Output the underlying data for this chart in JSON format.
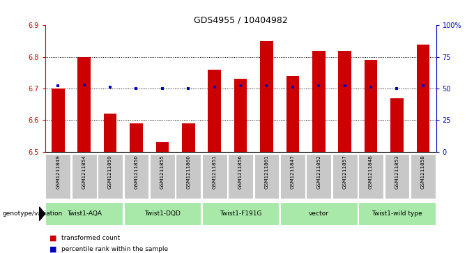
{
  "title": "GDS4955 / 10404982",
  "samples": [
    "GSM1211849",
    "GSM1211854",
    "GSM1211859",
    "GSM1211850",
    "GSM1211855",
    "GSM1211860",
    "GSM1211851",
    "GSM1211856",
    "GSM1211861",
    "GSM1211847",
    "GSM1211852",
    "GSM1211857",
    "GSM1211848",
    "GSM1211853",
    "GSM1211858"
  ],
  "bar_values": [
    6.7,
    6.8,
    6.62,
    6.59,
    6.53,
    6.59,
    6.76,
    6.73,
    6.85,
    6.74,
    6.82,
    6.82,
    6.79,
    6.67,
    6.84
  ],
  "percentile_values": [
    52,
    53,
    51,
    50,
    50,
    50,
    51,
    52,
    52,
    51,
    52,
    52,
    51,
    50,
    52
  ],
  "bar_bottom": 6.5,
  "ylim_left": [
    6.5,
    6.9
  ],
  "ylim_right": [
    0,
    100
  ],
  "yticks_left": [
    6.5,
    6.6,
    6.7,
    6.8,
    6.9
  ],
  "yticks_right": [
    0,
    25,
    50,
    75,
    100
  ],
  "ytick_labels_right": [
    "0",
    "25",
    "50",
    "75",
    "100%"
  ],
  "grid_values": [
    6.6,
    6.7,
    6.8
  ],
  "bar_color": "#cc0000",
  "percentile_color": "#0000cc",
  "groups": [
    {
      "label": "Twist1-AQA",
      "start": 0,
      "end": 2
    },
    {
      "label": "Twist1-DQD",
      "start": 3,
      "end": 5
    },
    {
      "label": "Twist1-F191G",
      "start": 6,
      "end": 8
    },
    {
      "label": "vector",
      "start": 9,
      "end": 11
    },
    {
      "label": "Twist1-wild type",
      "start": 12,
      "end": 14
    }
  ],
  "xlabel_genotype": "genotype/variation",
  "legend_bar_label": "transformed count",
  "legend_pct_label": "percentile rank within the sample",
  "bg_color": "#ffffff",
  "tick_label_color_left": "#cc0000",
  "tick_label_color_right": "#0000cc",
  "title_color": "#000000",
  "sample_bg_color": "#c8c8c8",
  "group_color": "#a8e8a8"
}
